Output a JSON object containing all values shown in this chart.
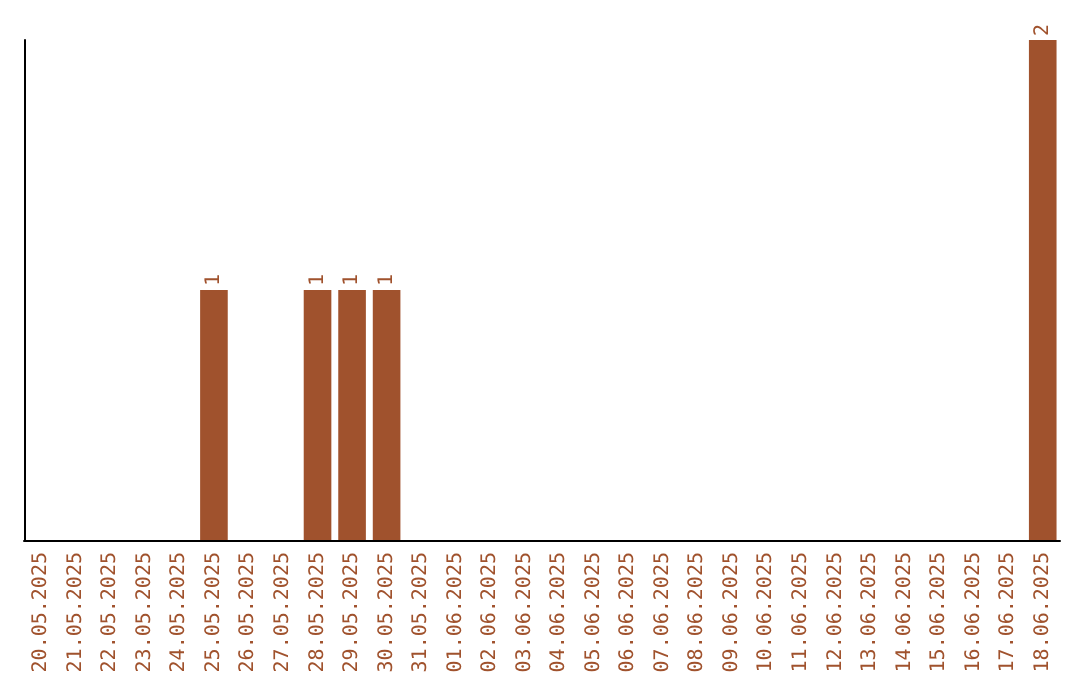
{
  "chart_data": {
    "type": "bar",
    "categories": [
      "20.05.2025",
      "21.05.2025",
      "22.05.2025",
      "23.05.2025",
      "24.05.2025",
      "25.05.2025",
      "26.05.2025",
      "27.05.2025",
      "28.05.2025",
      "29.05.2025",
      "30.05.2025",
      "31.05.2025",
      "01.06.2025",
      "02.06.2025",
      "03.06.2025",
      "04.06.2025",
      "05.06.2025",
      "06.06.2025",
      "07.06.2025",
      "08.06.2025",
      "09.06.2025",
      "10.06.2025",
      "11.06.2025",
      "12.06.2025",
      "13.06.2025",
      "14.06.2025",
      "15.06.2025",
      "16.06.2025",
      "17.06.2025",
      "18.06.2025"
    ],
    "values": [
      0,
      0,
      0,
      0,
      0,
      1,
      0,
      0,
      1,
      1,
      1,
      0,
      0,
      0,
      0,
      0,
      0,
      0,
      0,
      0,
      0,
      0,
      0,
      0,
      0,
      0,
      0,
      0,
      0,
      2
    ],
    "value_labels": [
      null,
      null,
      null,
      null,
      null,
      "1",
      null,
      null,
      "1",
      "1",
      "1",
      null,
      null,
      null,
      null,
      null,
      null,
      null,
      null,
      null,
      null,
      null,
      null,
      null,
      null,
      null,
      null,
      null,
      null,
      "2"
    ],
    "color": "#a0522d",
    "tick_labels": "x"
  }
}
